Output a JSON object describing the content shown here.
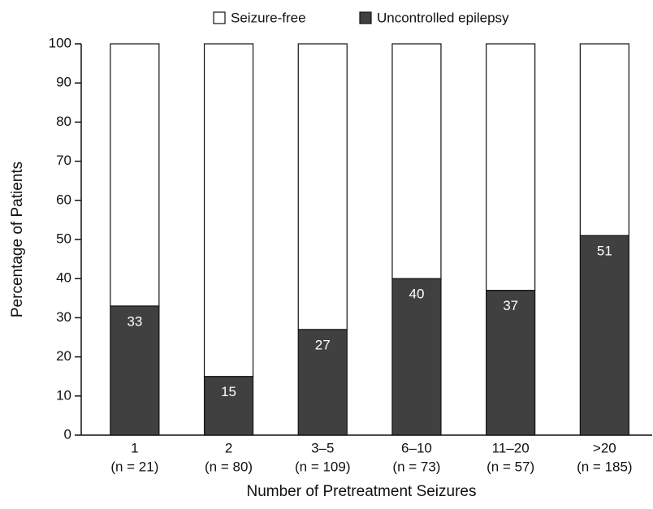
{
  "chart_data": {
    "type": "stacked_bar",
    "y_label": "Percentage of Patients",
    "x_label": "Number of Pretreatment Seizures",
    "categories": [
      "1",
      "2",
      "3–5",
      "6–10",
      "11–20",
      ">20"
    ],
    "category_sublabels": [
      "(n = 21)",
      "(n = 80)",
      "(n = 109)",
      "(n = 73)",
      "(n = 57)",
      "(n = 185)"
    ],
    "series": [
      {
        "name": "Uncontrolled epilepsy",
        "color": "#404040",
        "values": [
          33,
          15,
          27,
          40,
          37,
          51
        ]
      },
      {
        "name": "Seizure-free",
        "color": "#ffffff",
        "values": [
          67,
          85,
          73,
          60,
          63,
          49
        ]
      }
    ],
    "ylim": [
      0,
      100
    ],
    "yticks": [
      0,
      10,
      20,
      30,
      40,
      50,
      60,
      70,
      80,
      90,
      100
    ]
  }
}
